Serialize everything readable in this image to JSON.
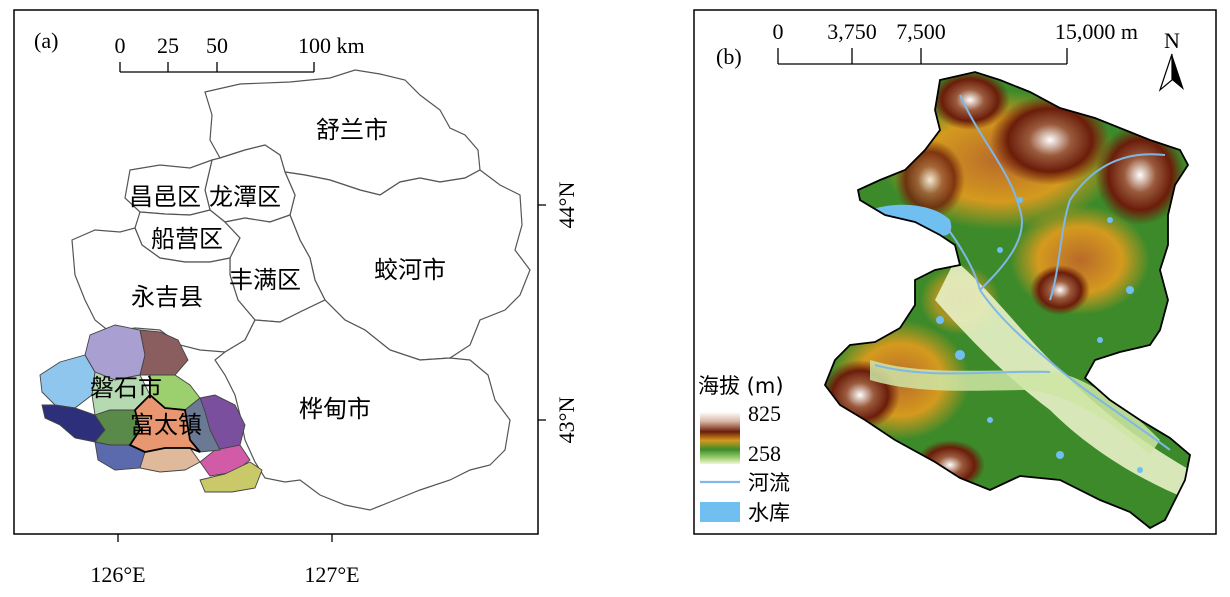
{
  "panel_a": {
    "label": "(a)",
    "scale": {
      "ticks": [
        "0",
        "25",
        "50",
        "100 km"
      ]
    },
    "regions": {
      "shulan": "舒兰市",
      "changyi": "昌邑区",
      "longtan": "龙潭区",
      "chuanying": "船营区",
      "fengman": "丰满区",
      "jiaohe": "蛟河市",
      "yongji": "永吉县",
      "panshi": "磐石市",
      "fudazhen": "富太镇",
      "huadian": "桦甸市"
    },
    "lat_labels": [
      "44°N",
      "43°N"
    ],
    "lon_labels": [
      "126°E",
      "127°E"
    ],
    "colors": {
      "sub_regions": [
        "#8fc6ee",
        "#a99fd1",
        "#8a5d5e",
        "#2d2f7a",
        "#b5d9b0",
        "#9ccf6e",
        "#5a8a4a",
        "#5b6aad",
        "#e0b89a",
        "#7a4f9e",
        "#d25ba8",
        "#c9c96a",
        "#6b7a94",
        "#e89770"
      ]
    }
  },
  "panel_b": {
    "label": "(b)",
    "scale": {
      "ticks": [
        "0",
        "3,750",
        "7,500",
        "15,000 m"
      ]
    },
    "north": "N",
    "legend": {
      "title": "海拔 (m)",
      "max": "825",
      "min": "258",
      "river": "河流",
      "reservoir": "水库"
    },
    "colors": {
      "river": "#7fb7e6",
      "reservoir": "#6fbff1",
      "elev_high": "#ffffff",
      "elev_mid": "#6b1d0a",
      "elev_low": "#2f8a2e",
      "elev_valley": "#e9f1c6"
    }
  }
}
